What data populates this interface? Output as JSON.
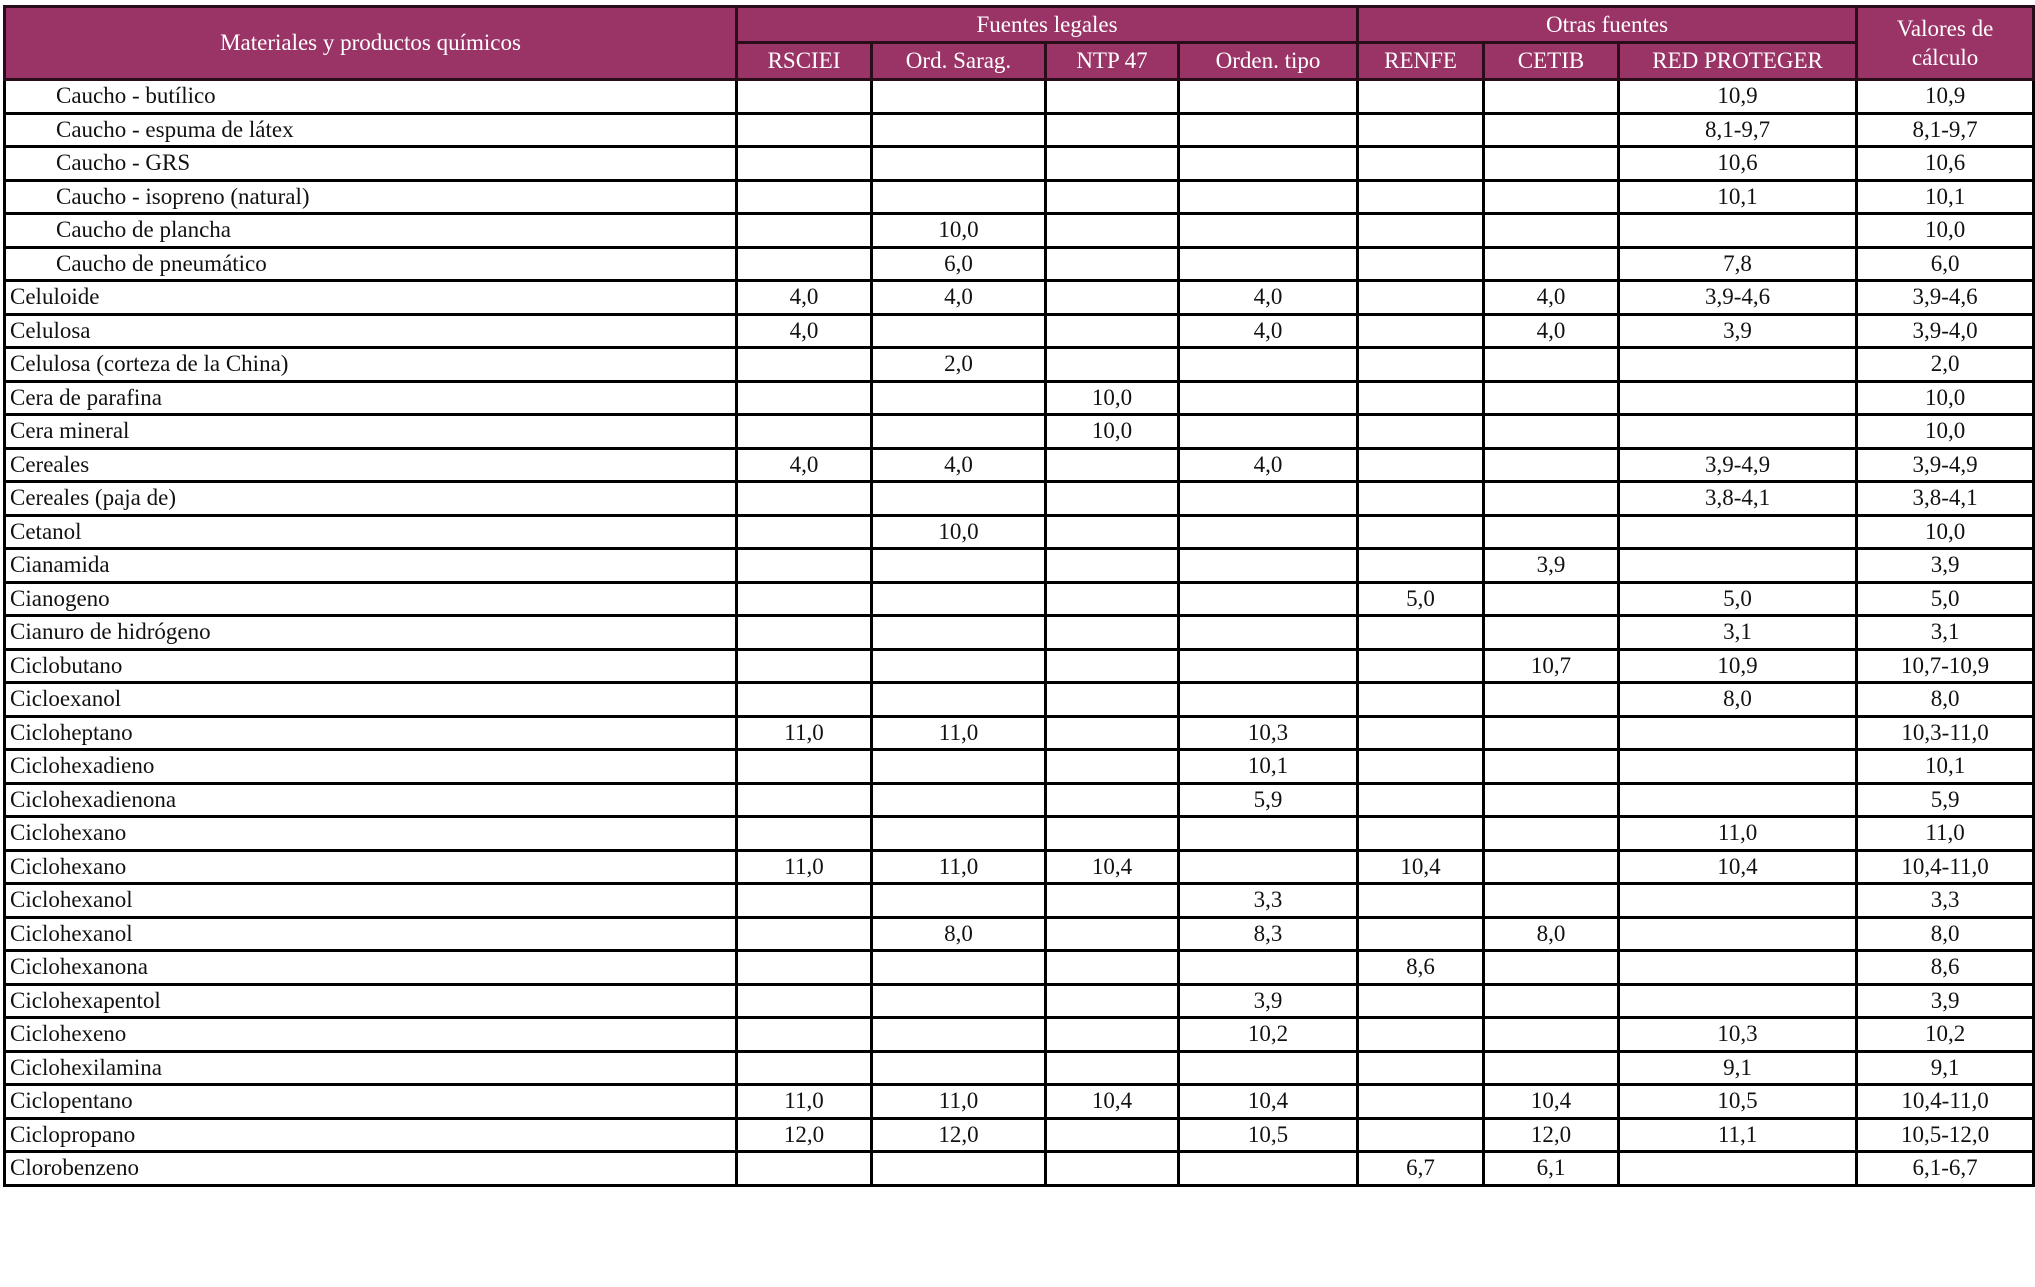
{
  "header": {
    "first_col": "Materiales y productos químicos",
    "group_legal": "Fuentes legales",
    "group_other": "Otras fuentes",
    "calc": "Valores de cálculo",
    "columns": [
      "RSCIEI",
      "Ord. Sarag.",
      "NTP 47",
      "Orden. tipo",
      "RENFE",
      "CETIB",
      "RED PROTEGER"
    ]
  },
  "header_color": "#9b3466",
  "rows": [
    {
      "name": "Caucho - butílico",
      "indent": true,
      "values": [
        "",
        "",
        "",
        "",
        "",
        "",
        "10,9",
        "10,9"
      ]
    },
    {
      "name": "Caucho - espuma de látex",
      "indent": true,
      "values": [
        "",
        "",
        "",
        "",
        "",
        "",
        "8,1-9,7",
        "8,1-9,7"
      ]
    },
    {
      "name": "Caucho - GRS",
      "indent": true,
      "values": [
        "",
        "",
        "",
        "",
        "",
        "",
        "10,6",
        "10,6"
      ]
    },
    {
      "name": "Caucho - isopreno (natural)",
      "indent": true,
      "values": [
        "",
        "",
        "",
        "",
        "",
        "",
        "10,1",
        "10,1"
      ]
    },
    {
      "name": "Caucho de plancha",
      "indent": true,
      "values": [
        "",
        "10,0",
        "",
        "",
        "",
        "",
        "",
        "10,0"
      ]
    },
    {
      "name": "Caucho de pneumático",
      "indent": true,
      "values": [
        "",
        "6,0",
        "",
        "",
        "",
        "",
        "7,8",
        "6,0"
      ]
    },
    {
      "name": "Celuloide",
      "indent": false,
      "values": [
        "4,0",
        "4,0",
        "",
        "4,0",
        "",
        "4,0",
        "3,9-4,6",
        "3,9-4,6"
      ]
    },
    {
      "name": "Celulosa",
      "indent": false,
      "values": [
        "4,0",
        "",
        "",
        "4,0",
        "",
        "4,0",
        "3,9",
        "3,9-4,0"
      ]
    },
    {
      "name": "Celulosa (corteza de la China)",
      "indent": false,
      "values": [
        "",
        "2,0",
        "",
        "",
        "",
        "",
        "",
        "2,0"
      ]
    },
    {
      "name": "Cera de parafina",
      "indent": false,
      "values": [
        "",
        "",
        "10,0",
        "",
        "",
        "",
        "",
        "10,0"
      ]
    },
    {
      "name": "Cera mineral",
      "indent": false,
      "values": [
        "",
        "",
        "10,0",
        "",
        "",
        "",
        "",
        "10,0"
      ]
    },
    {
      "name": "Cereales",
      "indent": false,
      "values": [
        "4,0",
        "4,0",
        "",
        "4,0",
        "",
        "",
        "3,9-4,9",
        "3,9-4,9"
      ]
    },
    {
      "name": "Cereales (paja de)",
      "indent": false,
      "values": [
        "",
        "",
        "",
        "",
        "",
        "",
        "3,8-4,1",
        "3,8-4,1"
      ]
    },
    {
      "name": "Cetanol",
      "indent": false,
      "values": [
        "",
        "10,0",
        "",
        "",
        "",
        "",
        "",
        "10,0"
      ]
    },
    {
      "name": "Cianamida",
      "indent": false,
      "values": [
        "",
        "",
        "",
        "",
        "",
        "3,9",
        "",
        "3,9"
      ]
    },
    {
      "name": "Cianogeno",
      "indent": false,
      "values": [
        "",
        "",
        "",
        "",
        "5,0",
        "",
        "5,0",
        "5,0"
      ]
    },
    {
      "name": "Cianuro de hidrógeno",
      "indent": false,
      "values": [
        "",
        "",
        "",
        "",
        "",
        "",
        "3,1",
        "3,1"
      ]
    },
    {
      "name": "Ciclobutano",
      "indent": false,
      "values": [
        "",
        "",
        "",
        "",
        "",
        "10,7",
        "10,9",
        "10,7-10,9"
      ]
    },
    {
      "name": "Cicloexanol",
      "indent": false,
      "values": [
        "",
        "",
        "",
        "",
        "",
        "",
        "8,0",
        "8,0"
      ]
    },
    {
      "name": "Cicloheptano",
      "indent": false,
      "values": [
        "11,0",
        "11,0",
        "",
        "10,3",
        "",
        "",
        "",
        "10,3-11,0"
      ]
    },
    {
      "name": "Ciclohexadieno",
      "indent": false,
      "values": [
        "",
        "",
        "",
        "10,1",
        "",
        "",
        "",
        "10,1"
      ]
    },
    {
      "name": "Ciclohexadienona",
      "indent": false,
      "values": [
        "",
        "",
        "",
        "5,9",
        "",
        "",
        "",
        "5,9"
      ]
    },
    {
      "name": "Ciclohexano",
      "indent": false,
      "values": [
        "",
        "",
        "",
        "",
        "",
        "",
        "11,0",
        "11,0"
      ]
    },
    {
      "name": "Ciclohexano",
      "indent": false,
      "values": [
        "11,0",
        "11,0",
        "10,4",
        "",
        "10,4",
        "",
        "10,4",
        "10,4-11,0"
      ]
    },
    {
      "name": "Ciclohexanol",
      "indent": false,
      "values": [
        "",
        "",
        "",
        "3,3",
        "",
        "",
        "",
        "3,3"
      ]
    },
    {
      "name": "Ciclohexanol",
      "indent": false,
      "values": [
        "",
        "8,0",
        "",
        "8,3",
        "",
        "8,0",
        "",
        "8,0"
      ]
    },
    {
      "name": "Ciclohexanona",
      "indent": false,
      "values": [
        "",
        "",
        "",
        "",
        "8,6",
        "",
        "",
        "8,6"
      ]
    },
    {
      "name": "Ciclohexapentol",
      "indent": false,
      "values": [
        "",
        "",
        "",
        "3,9",
        "",
        "",
        "",
        "3,9"
      ]
    },
    {
      "name": "Ciclohexeno",
      "indent": false,
      "values": [
        "",
        "",
        "",
        "10,2",
        "",
        "",
        "10,3",
        "10,2"
      ]
    },
    {
      "name": "Ciclohexilamina",
      "indent": false,
      "values": [
        "",
        "",
        "",
        "",
        "",
        "",
        "9,1",
        "9,1"
      ]
    },
    {
      "name": "Ciclopentano",
      "indent": false,
      "values": [
        "11,0",
        "11,0",
        "10,4",
        "10,4",
        "",
        "10,4",
        "10,5",
        "10,4-11,0"
      ]
    },
    {
      "name": "Ciclopropano",
      "indent": false,
      "values": [
        "12,0",
        "12,0",
        "",
        "10,5",
        "",
        "12,0",
        "11,1",
        "10,5-12,0"
      ]
    },
    {
      "name": "Clorobenzeno",
      "indent": false,
      "values": [
        "",
        "",
        "",
        "",
        "6,7",
        "6,1",
        "",
        "6,1-6,7"
      ]
    }
  ]
}
